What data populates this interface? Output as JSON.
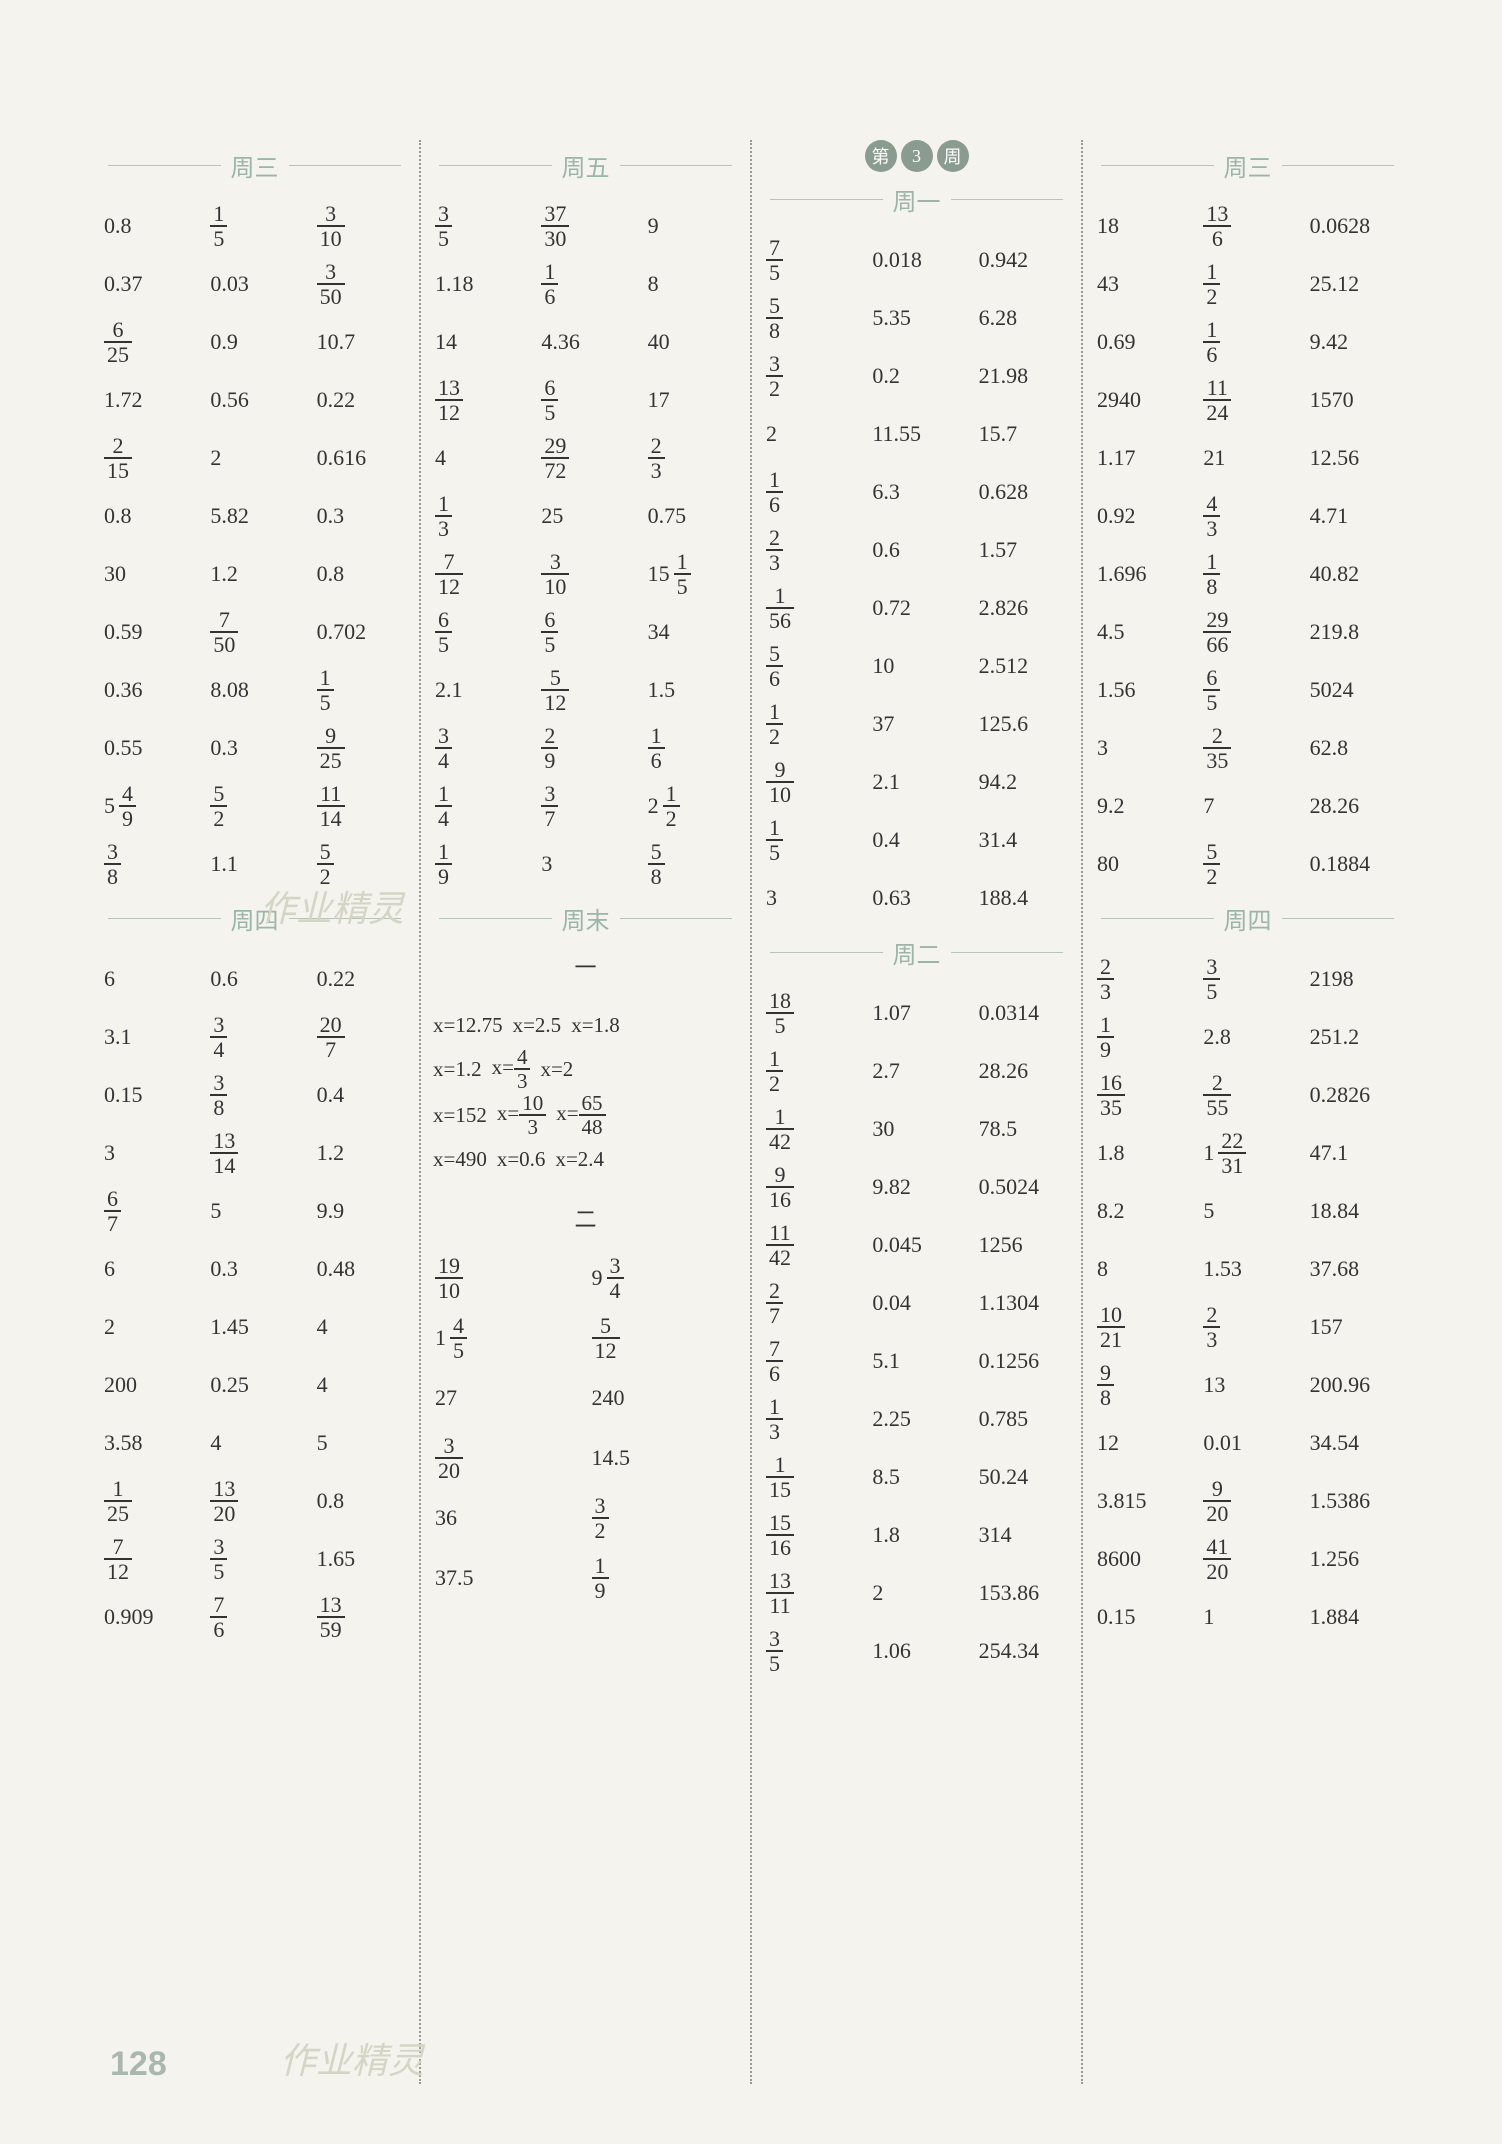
{
  "page_number": "128",
  "watermark": "作业精灵",
  "columns": [
    {
      "sections": [
        {
          "title": "周三",
          "rows": [
            [
              "0.8",
              {
                "f": [
                  1,
                  5
                ]
              },
              {
                "f": [
                  3,
                  10
                ]
              }
            ],
            [
              "0.37",
              "0.03",
              {
                "f": [
                  3,
                  50
                ]
              }
            ],
            [
              {
                "f": [
                  6,
                  25
                ]
              },
              "0.9",
              "10.7"
            ],
            [
              "1.72",
              "0.56",
              "0.22"
            ],
            [
              {
                "f": [
                  2,
                  15
                ]
              },
              "2",
              "0.616"
            ],
            [
              "0.8",
              "5.82",
              "0.3"
            ],
            [
              "30",
              "1.2",
              "0.8"
            ],
            [
              "0.59",
              {
                "f": [
                  7,
                  50
                ]
              },
              "0.702"
            ],
            [
              "0.36",
              "8.08",
              {
                "f": [
                  1,
                  5
                ]
              }
            ],
            [
              "0.55",
              "0.3",
              {
                "f": [
                  9,
                  25
                ]
              }
            ],
            [
              {
                "m": [
                  5,
                  4,
                  9
                ]
              },
              {
                "f": [
                  5,
                  2
                ]
              },
              {
                "f": [
                  11,
                  14
                ]
              }
            ],
            [
              {
                "f": [
                  3,
                  8
                ]
              },
              "1.1",
              {
                "f": [
                  5,
                  2
                ]
              }
            ]
          ]
        },
        {
          "title": "周四",
          "rows": [
            [
              "6",
              "0.6",
              "0.22"
            ],
            [
              "3.1",
              {
                "f": [
                  3,
                  4
                ]
              },
              {
                "f": [
                  20,
                  7
                ]
              }
            ],
            [
              "0.15",
              {
                "f": [
                  3,
                  8
                ]
              },
              "0.4"
            ],
            [
              "3",
              {
                "f": [
                  13,
                  14
                ]
              },
              "1.2"
            ],
            [
              {
                "f": [
                  6,
                  7
                ]
              },
              "5",
              "9.9"
            ],
            [
              "6",
              "0.3",
              "0.48"
            ],
            [
              "2",
              "1.45",
              "4"
            ],
            [
              "200",
              "0.25",
              "4"
            ],
            [
              "3.58",
              "4",
              "5"
            ],
            [
              {
                "f": [
                  1,
                  25
                ]
              },
              {
                "f": [
                  13,
                  20
                ]
              },
              "0.8"
            ],
            [
              {
                "f": [
                  7,
                  12
                ]
              },
              {
                "f": [
                  3,
                  5
                ]
              },
              "1.65"
            ],
            [
              "0.909",
              {
                "f": [
                  7,
                  6
                ]
              },
              {
                "f": [
                  13,
                  59
                ]
              }
            ]
          ]
        }
      ]
    },
    {
      "sections": [
        {
          "title": "周五",
          "rows": [
            [
              {
                "f": [
                  3,
                  5
                ]
              },
              {
                "f": [
                  37,
                  30
                ]
              },
              "9"
            ],
            [
              "1.18",
              {
                "f": [
                  1,
                  6
                ]
              },
              "8"
            ],
            [
              "14",
              "4.36",
              "40"
            ],
            [
              {
                "f": [
                  13,
                  12
                ]
              },
              {
                "f": [
                  6,
                  5
                ]
              },
              "17"
            ],
            [
              "4",
              {
                "f": [
                  29,
                  72
                ]
              },
              {
                "f": [
                  2,
                  3
                ]
              }
            ],
            [
              {
                "f": [
                  1,
                  3
                ]
              },
              "25",
              "0.75"
            ],
            [
              {
                "f": [
                  7,
                  12
                ]
              },
              {
                "f": [
                  3,
                  10
                ]
              },
              {
                "m": [
                  15,
                  1,
                  5
                ]
              }
            ],
            [
              {
                "f": [
                  6,
                  5
                ]
              },
              {
                "f": [
                  6,
                  5
                ]
              },
              "34"
            ],
            [
              "2.1",
              {
                "f": [
                  5,
                  12
                ]
              },
              "1.5"
            ],
            [
              {
                "f": [
                  3,
                  4
                ]
              },
              {
                "f": [
                  2,
                  9
                ]
              },
              {
                "f": [
                  1,
                  6
                ]
              }
            ],
            [
              {
                "f": [
                  1,
                  4
                ]
              },
              {
                "f": [
                  3,
                  7
                ]
              },
              {
                "m": [
                  2,
                  1,
                  2
                ]
              }
            ],
            [
              {
                "f": [
                  1,
                  9
                ]
              },
              "3",
              {
                "f": [
                  5,
                  8
                ]
              }
            ]
          ]
        },
        {
          "title": "周末",
          "sub1": "一",
          "equations1": [
            [
              "x=12.75",
              "x=2.5",
              "x=1.8"
            ],
            [
              "x=1.2",
              {
                "eqf": [
                  "x=",
                  4,
                  3
                ]
              },
              "x=2"
            ],
            [
              "x=152",
              {
                "eqf": [
                  "x=",
                  10,
                  3
                ]
              },
              {
                "eqf": [
                  "x=",
                  65,
                  48
                ]
              }
            ],
            [
              "x=490",
              "x=0.6",
              "x=2.4"
            ]
          ],
          "sub2": "二",
          "rows2": [
            [
              {
                "f": [
                  19,
                  10
                ]
              },
              {
                "m": [
                  9,
                  3,
                  4
                ]
              }
            ],
            [
              {
                "m": [
                  1,
                  4,
                  5
                ]
              },
              {
                "f": [
                  5,
                  12
                ]
              }
            ],
            [
              "27",
              "240"
            ],
            [
              {
                "f": [
                  3,
                  20
                ]
              },
              "14.5"
            ],
            [
              "36",
              {
                "f": [
                  3,
                  2
                ]
              }
            ],
            [
              "37.5",
              {
                "f": [
                  1,
                  9
                ]
              }
            ]
          ]
        }
      ]
    },
    {
      "badge": [
        "第",
        "3",
        "周"
      ],
      "sections": [
        {
          "title": "周一",
          "rows": [
            [
              {
                "f": [
                  7,
                  5
                ]
              },
              "0.018",
              "0.942"
            ],
            [
              {
                "f": [
                  5,
                  8
                ]
              },
              "5.35",
              "6.28"
            ],
            [
              {
                "f": [
                  3,
                  2
                ]
              },
              "0.2",
              "21.98"
            ],
            [
              "2",
              "11.55",
              "15.7"
            ],
            [
              {
                "f": [
                  1,
                  6
                ]
              },
              "6.3",
              "0.628"
            ],
            [
              {
                "f": [
                  2,
                  3
                ]
              },
              "0.6",
              "1.57"
            ],
            [
              {
                "f": [
                  1,
                  56
                ]
              },
              "0.72",
              "2.826"
            ],
            [
              {
                "f": [
                  5,
                  6
                ]
              },
              "10",
              "2.512"
            ],
            [
              {
                "f": [
                  1,
                  2
                ]
              },
              "37",
              "125.6"
            ],
            [
              {
                "f": [
                  9,
                  10
                ]
              },
              "2.1",
              "94.2"
            ],
            [
              {
                "f": [
                  1,
                  5
                ]
              },
              "0.4",
              "31.4"
            ],
            [
              "3",
              "0.63",
              "188.4"
            ]
          ]
        },
        {
          "title": "周二",
          "rows": [
            [
              {
                "f": [
                  18,
                  5
                ]
              },
              "1.07",
              "0.0314"
            ],
            [
              {
                "f": [
                  1,
                  2
                ]
              },
              "2.7",
              "28.26"
            ],
            [
              {
                "f": [
                  1,
                  42
                ]
              },
              "30",
              "78.5"
            ],
            [
              {
                "f": [
                  9,
                  16
                ]
              },
              "9.82",
              "0.5024"
            ],
            [
              {
                "f": [
                  11,
                  42
                ]
              },
              "0.045",
              "1256"
            ],
            [
              {
                "f": [
                  2,
                  7
                ]
              },
              "0.04",
              "1.1304"
            ],
            [
              {
                "f": [
                  7,
                  6
                ]
              },
              "5.1",
              "0.1256"
            ],
            [
              {
                "f": [
                  1,
                  3
                ]
              },
              "2.25",
              "0.785"
            ],
            [
              {
                "f": [
                  1,
                  15
                ]
              },
              "8.5",
              "50.24"
            ],
            [
              {
                "f": [
                  15,
                  16
                ]
              },
              "1.8",
              "314"
            ],
            [
              {
                "f": [
                  13,
                  11
                ]
              },
              "2",
              "153.86"
            ],
            [
              {
                "f": [
                  3,
                  5
                ]
              },
              "1.06",
              "254.34"
            ]
          ]
        }
      ]
    },
    {
      "sections": [
        {
          "title": "周三",
          "rows": [
            [
              "18",
              {
                "f": [
                  13,
                  6
                ]
              },
              "0.0628"
            ],
            [
              "43",
              {
                "f": [
                  1,
                  2
                ]
              },
              "25.12"
            ],
            [
              "0.69",
              {
                "f": [
                  1,
                  6
                ]
              },
              "9.42"
            ],
            [
              "2940",
              {
                "f": [
                  11,
                  24
                ]
              },
              "1570"
            ],
            [
              "1.17",
              "21",
              "12.56"
            ],
            [
              "0.92",
              {
                "f": [
                  4,
                  3
                ]
              },
              "4.71"
            ],
            [
              "1.696",
              {
                "f": [
                  1,
                  8
                ]
              },
              "40.82"
            ],
            [
              "4.5",
              {
                "f": [
                  29,
                  66
                ]
              },
              "219.8"
            ],
            [
              "1.56",
              {
                "f": [
                  6,
                  5
                ]
              },
              "5024"
            ],
            [
              "3",
              {
                "f": [
                  2,
                  35
                ]
              },
              "62.8"
            ],
            [
              "9.2",
              "7",
              "28.26"
            ],
            [
              "80",
              {
                "f": [
                  5,
                  2
                ]
              },
              "0.1884"
            ]
          ]
        },
        {
          "title": "周四",
          "rows": [
            [
              {
                "f": [
                  2,
                  3
                ]
              },
              {
                "f": [
                  3,
                  5
                ]
              },
              "2198"
            ],
            [
              {
                "f": [
                  1,
                  9
                ]
              },
              "2.8",
              "251.2"
            ],
            [
              {
                "f": [
                  16,
                  35
                ]
              },
              {
                "f": [
                  2,
                  55
                ]
              },
              "0.2826"
            ],
            [
              "1.8",
              {
                "m": [
                  1,
                  22,
                  31
                ]
              },
              "47.1"
            ],
            [
              "8.2",
              "5",
              "18.84"
            ],
            [
              "8",
              "1.53",
              "37.68"
            ],
            [
              {
                "f": [
                  10,
                  21
                ]
              },
              {
                "f": [
                  2,
                  3
                ]
              },
              "157"
            ],
            [
              {
                "f": [
                  9,
                  8
                ]
              },
              "13",
              "200.96"
            ],
            [
              "12",
              "0.01",
              "34.54"
            ],
            [
              "3.815",
              {
                "f": [
                  9,
                  20
                ]
              },
              "1.5386"
            ],
            [
              "8600",
              {
                "f": [
                  41,
                  20
                ]
              },
              "1.256"
            ],
            [
              "0.15",
              "1",
              "1.884"
            ]
          ]
        }
      ]
    }
  ]
}
